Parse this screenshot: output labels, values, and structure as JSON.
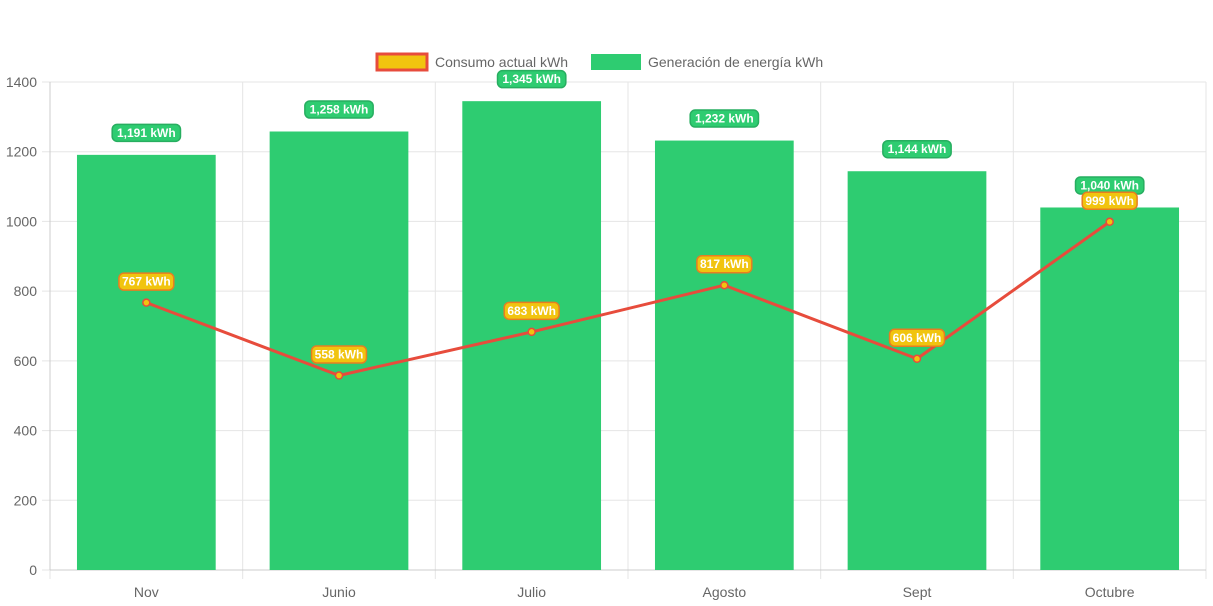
{
  "chart_data": {
    "type": "bar",
    "categories": [
      "Nov",
      "Junio",
      "Julio",
      "Agosto",
      "Sept",
      "Octubre"
    ],
    "series": [
      {
        "name": "Consumo actual kWh",
        "type": "line",
        "values": [
          767,
          558,
          683,
          817,
          606,
          999
        ],
        "labels": [
          "767 kWh",
          "558 kWh",
          "683 kWh",
          "817 kWh",
          "606 kWh",
          "999 kWh"
        ],
        "color": "#e74c3c",
        "fill_color": "#f1c40f"
      },
      {
        "name": "Generación de energía kWh",
        "type": "bar",
        "values": [
          1191,
          1258,
          1345,
          1232,
          1144,
          1040
        ],
        "labels": [
          "1,191 kWh",
          "1,258 kWh",
          "1,345 kWh",
          "1,232 kWh",
          "1,144 kWh",
          "1,040 kWh"
        ],
        "color": "#2ecc71"
      }
    ],
    "ylim": [
      0,
      1400
    ],
    "yticks": [
      0,
      200,
      400,
      600,
      800,
      1000,
      1200,
      1400
    ],
    "ytick_labels": [
      "0",
      "200",
      "400",
      "600",
      "800",
      "1000",
      "1200",
      "1400"
    ],
    "grid": true,
    "legend": "top-center"
  }
}
